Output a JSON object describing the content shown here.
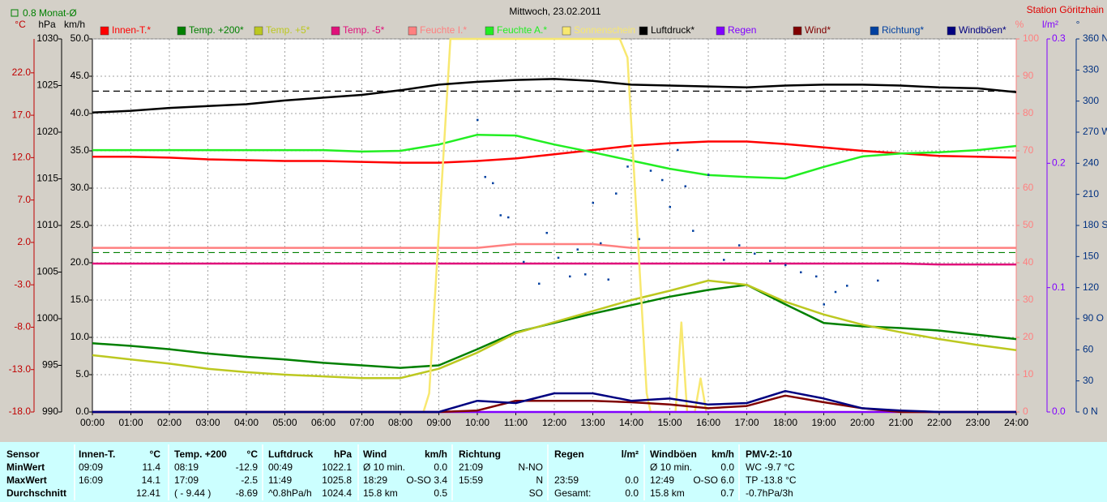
{
  "chart_data": {
    "type": "line",
    "title": "Mittwoch, 23.02.2011",
    "station": "Station Göritzhain",
    "monthly_average_label": "0.8 Monat-Ø",
    "grid": true,
    "x": [
      0,
      1,
      2,
      3,
      4,
      5,
      6,
      7,
      8,
      9,
      10,
      11,
      12,
      13,
      14,
      15,
      16,
      17,
      18,
      19,
      20,
      21,
      22,
      23,
      24
    ],
    "xlim": [
      0,
      24
    ],
    "xticks": [
      {
        "value": 0,
        "label": "00:00"
      },
      {
        "value": 1,
        "label": "01:00"
      },
      {
        "value": 2,
        "label": "02:00"
      },
      {
        "value": 3,
        "label": "03:00"
      },
      {
        "value": 4,
        "label": "04:00"
      },
      {
        "value": 5,
        "label": "05:00"
      },
      {
        "value": 6,
        "label": "06:00"
      },
      {
        "value": 7,
        "label": "07:00"
      },
      {
        "value": 8,
        "label": "08:00"
      },
      {
        "value": 9,
        "label": "09:00"
      },
      {
        "value": 10,
        "label": "10:00"
      },
      {
        "value": 11,
        "label": "11:00"
      },
      {
        "value": 12,
        "label": "12:00"
      },
      {
        "value": 13,
        "label": "13:00"
      },
      {
        "value": 14,
        "label": "14:00"
      },
      {
        "value": 15,
        "label": "15:00"
      },
      {
        "value": 16,
        "label": "16:00"
      },
      {
        "value": 17,
        "label": "17:00"
      },
      {
        "value": 18,
        "label": "18:00"
      },
      {
        "value": 19,
        "label": "19:00"
      },
      {
        "value": 20,
        "label": "20:00"
      },
      {
        "value": 21,
        "label": "21:00"
      },
      {
        "value": 22,
        "label": "22:00"
      },
      {
        "value": 23,
        "label": "23:00"
      },
      {
        "value": 24,
        "label": "24:00"
      }
    ],
    "axes": [
      {
        "unit": "°C",
        "color": "#c00000",
        "lim": [
          -18,
          26
        ],
        "ticks": [
          {
            "value": -18,
            "label": "-18.0"
          },
          {
            "value": -13,
            "label": "-13.0"
          },
          {
            "value": -8,
            "label": "-8.0"
          },
          {
            "value": -3,
            "label": "-3.0"
          },
          {
            "value": 2,
            "label": "2.0"
          },
          {
            "value": 7,
            "label": "7.0"
          },
          {
            "value": 12,
            "label": "12.0"
          },
          {
            "value": 17,
            "label": "17.0"
          },
          {
            "value": 22,
            "label": "22.0"
          }
        ]
      },
      {
        "unit": "hPa",
        "color": "#000000",
        "lim": [
          990,
          1030
        ],
        "ticks": [
          990,
          995,
          1000,
          1005,
          1010,
          1015,
          1020,
          1025,
          1030
        ]
      },
      {
        "unit": "km/h",
        "color": "#000000",
        "lim": [
          0,
          50
        ],
        "grid": true,
        "ticks": [
          {
            "value": 0,
            "label": "0.0"
          },
          {
            "value": 5,
            "label": "5.0"
          },
          {
            "value": 10,
            "label": "10.0"
          },
          {
            "value": 15,
            "label": "15.0"
          },
          {
            "value": 20,
            "label": "20.0"
          },
          {
            "value": 25,
            "label": "25.0"
          },
          {
            "value": 30,
            "label": "30.0"
          },
          {
            "value": 35,
            "label": "35.0"
          },
          {
            "value": 40,
            "label": "40.0"
          },
          {
            "value": 45,
            "label": "45.0"
          },
          {
            "value": 50,
            "label": "50.0"
          }
        ]
      },
      {
        "unit": "%",
        "color": "#ff8080",
        "lim": [
          0,
          100
        ],
        "ticks": [
          0,
          10,
          20,
          30,
          40,
          50,
          60,
          70,
          80,
          90,
          100
        ]
      },
      {
        "unit": "l/m²",
        "color": "#8000ff",
        "lim": [
          0,
          0.3
        ],
        "ticks": [
          {
            "value": 0,
            "label": "0.0"
          },
          0.1,
          0.2,
          0.3
        ]
      },
      {
        "unit": "°",
        "color": "#003080",
        "lim": [
          0,
          360
        ],
        "ticks": [
          {
            "value": 0,
            "label": "0 N"
          },
          30,
          60,
          {
            "value": 90,
            "label": "90 O"
          },
          120,
          150,
          {
            "value": 180,
            "label": "180 S"
          },
          210,
          240,
          {
            "value": 270,
            "label": "270 W"
          },
          300,
          330,
          {
            "value": 360,
            "label": "360 N"
          }
        ]
      }
    ],
    "reference_lines": [
      {
        "value": 0.8,
        "axis": 0,
        "color": "#008000"
      },
      {
        "value": 1024.4,
        "axis": 1,
        "color": "#000000"
      }
    ],
    "series": [
      {
        "name": "Innen-T.*",
        "color": "#ff0000",
        "axis": 0,
        "values": [
          12.1,
          12.1,
          12.0,
          11.8,
          11.7,
          11.6,
          11.6,
          11.5,
          11.4,
          11.4,
          11.6,
          11.9,
          12.4,
          12.9,
          13.4,
          13.7,
          13.9,
          13.9,
          13.6,
          13.2,
          12.8,
          12.5,
          12.2,
          12.1,
          12.0
        ]
      },
      {
        "name": "Temp. +200*",
        "color": "#008000",
        "axis": 0,
        "values": [
          -9.9,
          -10.2,
          -10.6,
          -11.1,
          -11.5,
          -11.8,
          -12.2,
          -12.5,
          -12.8,
          -12.5,
          -10.6,
          -8.6,
          -7.5,
          -6.4,
          -5.4,
          -4.4,
          -3.6,
          -3.0,
          -5.3,
          -7.5,
          -7.9,
          -8.1,
          -8.4,
          -8.9,
          -9.4
        ]
      },
      {
        "name": "Temp. +5*",
        "color": "#bcc820",
        "axis": 0,
        "values": [
          -11.3,
          -11.8,
          -12.3,
          -12.9,
          -13.3,
          -13.6,
          -13.8,
          -14.0,
          -14.0,
          -12.9,
          -11.0,
          -8.7,
          -7.4,
          -6.1,
          -4.8,
          -3.7,
          -2.5,
          -3.0,
          -5.0,
          -6.5,
          -7.7,
          -8.6,
          -9.4,
          -10.1,
          -10.7
        ]
      },
      {
        "name": "Temp. -5*",
        "color": "#e0107a",
        "axis": 0,
        "values": [
          -0.5,
          -0.5,
          -0.5,
          -0.5,
          -0.5,
          -0.5,
          -0.5,
          -0.5,
          -0.5,
          -0.5,
          -0.5,
          -0.5,
          -0.5,
          -0.5,
          -0.5,
          -0.5,
          -0.5,
          -0.5,
          -0.5,
          -0.5,
          -0.5,
          -0.5,
          -0.6,
          -0.6,
          -0.6
        ]
      },
      {
        "name": "Feuchte I.*",
        "color": "#ff8080",
        "axis": 3,
        "values": [
          44,
          44,
          44,
          44,
          44,
          44,
          44,
          44,
          44,
          44,
          44,
          45,
          45,
          45,
          44,
          44,
          44,
          44,
          44,
          44,
          44,
          44,
          44,
          44,
          44
        ]
      },
      {
        "name": "Feuchte A.*",
        "color": "#22ee22",
        "axis": 3,
        "values": [
          70.2,
          70.2,
          70.2,
          70.2,
          70.2,
          70.2,
          70.2,
          69.8,
          70.0,
          71.7,
          74.3,
          74.1,
          71.7,
          69.6,
          67.4,
          65.2,
          63.5,
          63.0,
          62.6,
          65.7,
          68.5,
          69.3,
          69.6,
          70.2,
          71.3
        ]
      },
      {
        "name": "Sonnenschein",
        "color": "#f8e870",
        "axis": 3,
        "x": [
          0,
          8.6,
          8.75,
          9.3,
          13.7,
          13.9,
          14.4,
          14.5,
          15.15,
          15.3,
          15.45,
          15.65,
          15.8,
          15.95,
          24
        ],
        "values": [
          0,
          0,
          5,
          100,
          100,
          95,
          5,
          0,
          0,
          24,
          0,
          0,
          9,
          0,
          0
        ]
      },
      {
        "name": "Luftdruck*",
        "color": "#000000",
        "axis": 1,
        "values": [
          1022.1,
          1022.3,
          1022.6,
          1022.8,
          1023.0,
          1023.4,
          1023.7,
          1024.0,
          1024.5,
          1025.1,
          1025.4,
          1025.6,
          1025.7,
          1025.5,
          1025.1,
          1025.0,
          1024.9,
          1024.8,
          1025.0,
          1025.1,
          1025.1,
          1025.0,
          1024.8,
          1024.7,
          1024.3
        ]
      },
      {
        "name": "Regen",
        "color": "#8000ff",
        "axis": 4,
        "values": [
          0,
          0,
          0,
          0,
          0,
          0,
          0,
          0,
          0,
          0,
          0,
          0,
          0,
          0,
          0,
          0,
          0,
          0,
          0,
          0,
          0,
          0,
          0,
          0,
          0
        ]
      },
      {
        "name": "Wind*",
        "color": "#800000",
        "axis": 2,
        "values": [
          0,
          0,
          0,
          0,
          0,
          0,
          0,
          0,
          0,
          0,
          0.2,
          1.5,
          1.5,
          1.5,
          1.3,
          1.0,
          0.5,
          0.8,
          2.2,
          1.3,
          0.5,
          0,
          0,
          0,
          0
        ]
      },
      {
        "name": "Richtung*",
        "color": "#0040a0",
        "axis": 5,
        "mode": "markers",
        "x": [
          10.0,
          10.2,
          10.4,
          10.6,
          10.8,
          11.2,
          11.6,
          11.8,
          12.1,
          12.4,
          12.6,
          12.8,
          13.0,
          13.2,
          13.4,
          13.6,
          13.9,
          14.2,
          14.5,
          14.8,
          15.0,
          15.2,
          15.4,
          15.6,
          16.0,
          16.4,
          16.8,
          17.2,
          17.6,
          18.0,
          18.4,
          18.8,
          19.0,
          19.3,
          19.6,
          20.4
        ],
        "values": [
          282,
          227,
          221,
          190,
          188,
          145,
          124,
          173,
          149,
          131,
          157,
          133,
          202,
          163,
          128,
          211,
          237,
          167,
          233,
          224,
          198,
          253,
          218,
          175,
          229,
          147,
          161,
          153,
          146,
          142,
          135,
          131,
          104,
          116,
          122,
          127
        ]
      },
      {
        "name": "Windböen*",
        "color": "#000080",
        "axis": 2,
        "values": [
          0,
          0,
          0,
          0,
          0,
          0,
          0,
          0,
          0,
          0,
          1.5,
          1.2,
          2.5,
          2.5,
          1.5,
          1.8,
          1.0,
          1.2,
          2.8,
          1.8,
          0.5,
          0.2,
          0,
          0,
          0
        ]
      }
    ]
  },
  "stats": {
    "rows": [
      [
        "Sensor",
        "Innen-T.",
        "°C",
        "Temp. +200",
        "°C",
        "Luftdruck",
        "hPa",
        "Wind",
        "km/h",
        "Richtung",
        null,
        "Regen",
        "l/m²",
        "Windböen",
        "km/h",
        "PMV-2:-10",
        null
      ],
      [
        "MinWert",
        "09:09",
        "11.4",
        "08:19",
        "-12.9",
        "00:49",
        "1022.1",
        "Ø 10 min.",
        "0.0",
        "21:09",
        "N-NO",
        null,
        null,
        "Ø 10 min.",
        "0.0",
        "WC -9.7 °C",
        null
      ],
      [
        "MaxWert",
        "16:09",
        "14.1",
        "17:09",
        "-2.5",
        "11:49",
        "1025.8",
        "18:29",
        "O-SO 3.4",
        "15:59",
        "N",
        "23:59",
        "0.0",
        "12:49",
        "O-SO 6.0",
        "TP -13.8 °C",
        null
      ],
      [
        "Durchschnitt",
        null,
        "12.41",
        "( - 9.44 )",
        "-8.69",
        "^0.8hPa/h",
        "1024.4",
        "15.8 km",
        "0.5",
        null,
        "SO",
        "Gesamt:",
        "0.0",
        "15.8 km",
        "0.7",
        "-0.7hPa/3h",
        null
      ]
    ]
  }
}
